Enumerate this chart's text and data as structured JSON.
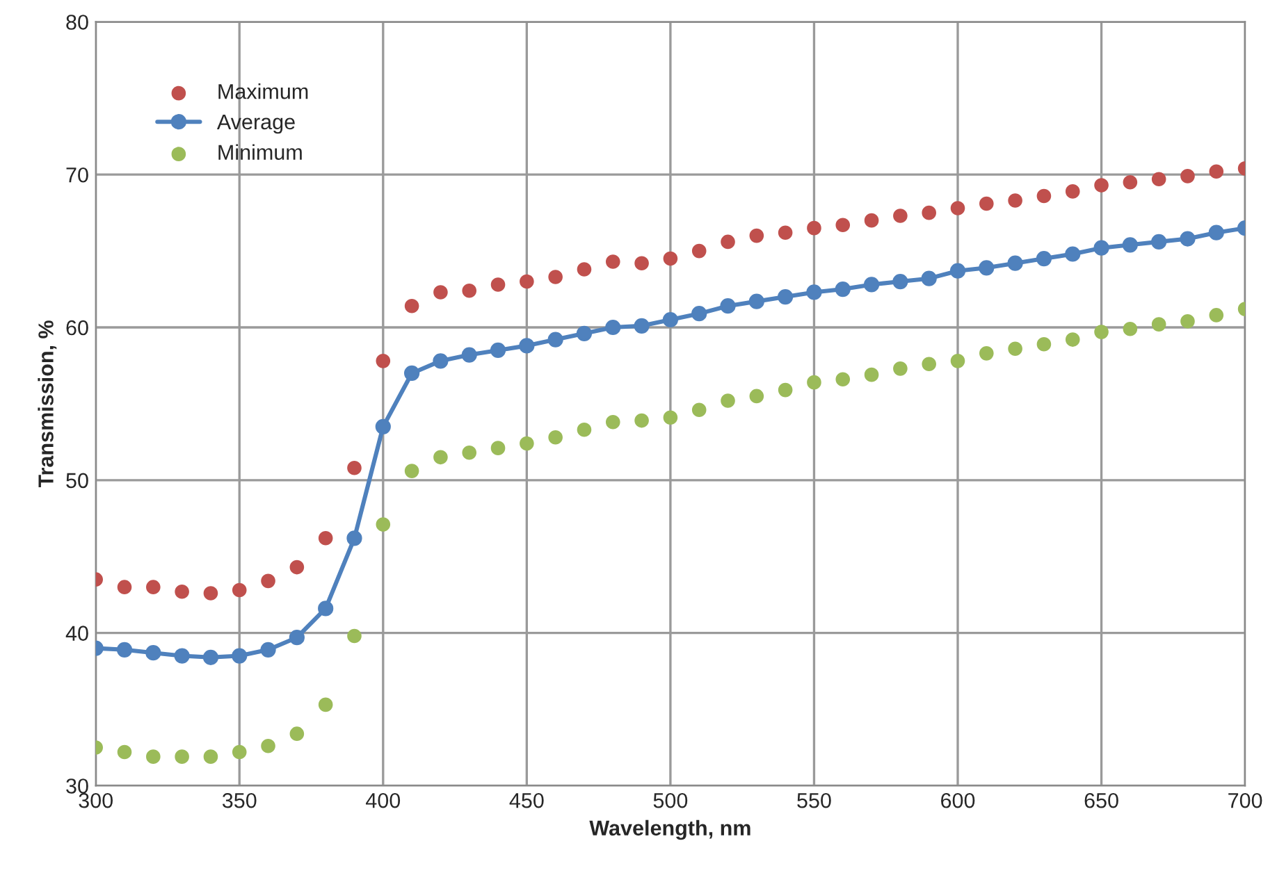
{
  "chart_data": {
    "type": "line",
    "xlabel": "Wavelength, nm",
    "ylabel": "Transmission, %",
    "x": [
      300,
      310,
      320,
      330,
      340,
      350,
      360,
      370,
      380,
      390,
      400,
      410,
      420,
      430,
      440,
      450,
      460,
      470,
      480,
      490,
      500,
      510,
      520,
      530,
      540,
      550,
      560,
      570,
      580,
      590,
      600,
      610,
      620,
      630,
      640,
      650,
      660,
      670,
      680,
      690,
      700
    ],
    "series": [
      {
        "name": "Maximum",
        "type": "scatter",
        "color": "#c0504d",
        "values": [
          43.5,
          43.0,
          43.0,
          42.7,
          42.6,
          42.8,
          43.4,
          44.3,
          46.2,
          50.8,
          57.8,
          61.4,
          62.3,
          62.4,
          62.8,
          63.0,
          63.3,
          63.8,
          64.3,
          64.2,
          64.5,
          65.0,
          65.6,
          66.0,
          66.2,
          66.5,
          66.7,
          67.0,
          67.3,
          67.5,
          67.8,
          68.1,
          68.3,
          68.6,
          68.9,
          69.3,
          69.5,
          69.7,
          69.9,
          70.2,
          70.4
        ]
      },
      {
        "name": "Average",
        "color": "#4f81bd",
        "values": [
          39.0,
          38.9,
          38.7,
          38.5,
          38.4,
          38.5,
          38.9,
          39.7,
          41.6,
          46.2,
          53.5,
          57.0,
          57.8,
          58.2,
          58.5,
          58.8,
          59.2,
          59.6,
          60.0,
          60.1,
          60.5,
          60.9,
          61.4,
          61.7,
          62.0,
          62.3,
          62.5,
          62.8,
          63.0,
          63.2,
          63.7,
          63.9,
          64.2,
          64.5,
          64.8,
          65.2,
          65.4,
          65.6,
          65.8,
          66.2,
          66.5
        ]
      },
      {
        "name": "Minimum",
        "type": "scatter",
        "color": "#9bbb59",
        "values": [
          32.5,
          32.2,
          31.9,
          31.9,
          31.9,
          32.2,
          32.6,
          33.4,
          35.3,
          39.8,
          47.1,
          50.6,
          51.5,
          51.8,
          52.1,
          52.4,
          52.8,
          53.3,
          53.8,
          53.9,
          54.1,
          54.6,
          55.2,
          55.5,
          55.9,
          56.4,
          56.6,
          56.9,
          57.3,
          57.6,
          57.8,
          58.3,
          58.6,
          58.9,
          59.2,
          59.7,
          59.9,
          60.2,
          60.4,
          60.8,
          61.2
        ]
      }
    ],
    "xlim": [
      300,
      700
    ],
    "xticks": [
      300,
      350,
      400,
      450,
      500,
      550,
      600,
      650,
      700
    ],
    "ylim": [
      30,
      80
    ],
    "yticks": [
      30,
      40,
      50,
      60,
      70,
      80
    ],
    "grid": true,
    "legend": "top left",
    "marker": "circle",
    "line_style": "solid"
  }
}
